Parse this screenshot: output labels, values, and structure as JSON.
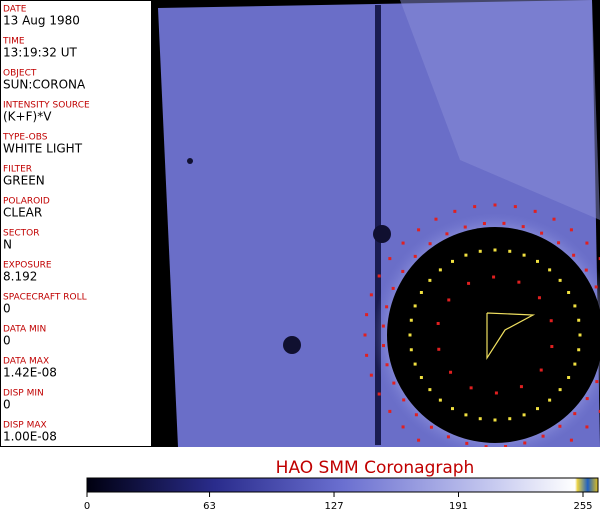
{
  "fields": [
    {
      "label": "DATE",
      "value": "13 Aug 1980"
    },
    {
      "label": "TIME",
      "value": "13:19:32 UT"
    },
    {
      "label": "OBJECT",
      "value": "SUN:CORONA"
    },
    {
      "label": "INTENSITY SOURCE",
      "value": "(K+F)*V"
    },
    {
      "label": "TYPE-OBS",
      "value": "WHITE LIGHT"
    },
    {
      "label": "FILTER",
      "value": "GREEN"
    },
    {
      "label": "POLAROID",
      "value": "CLEAR"
    },
    {
      "label": "SECTOR",
      "value": "N"
    },
    {
      "label": "EXPOSURE",
      "value": "8.192"
    },
    {
      "label": "SPACECRAFT ROLL",
      "value": "0"
    },
    {
      "label": "DATA MIN",
      "value": "0"
    },
    {
      "label": "DATA MAX",
      "value": "1.42E-08"
    },
    {
      "label": "DISP MIN",
      "value": "0"
    },
    {
      "label": "DISP MAX",
      "value": "1.00E-08"
    }
  ],
  "title": "HAO  SMM Coronagraph",
  "colorbar": {
    "range": [
      0,
      255
    ],
    "ticks": [
      0,
      63,
      127,
      191,
      255
    ]
  }
}
